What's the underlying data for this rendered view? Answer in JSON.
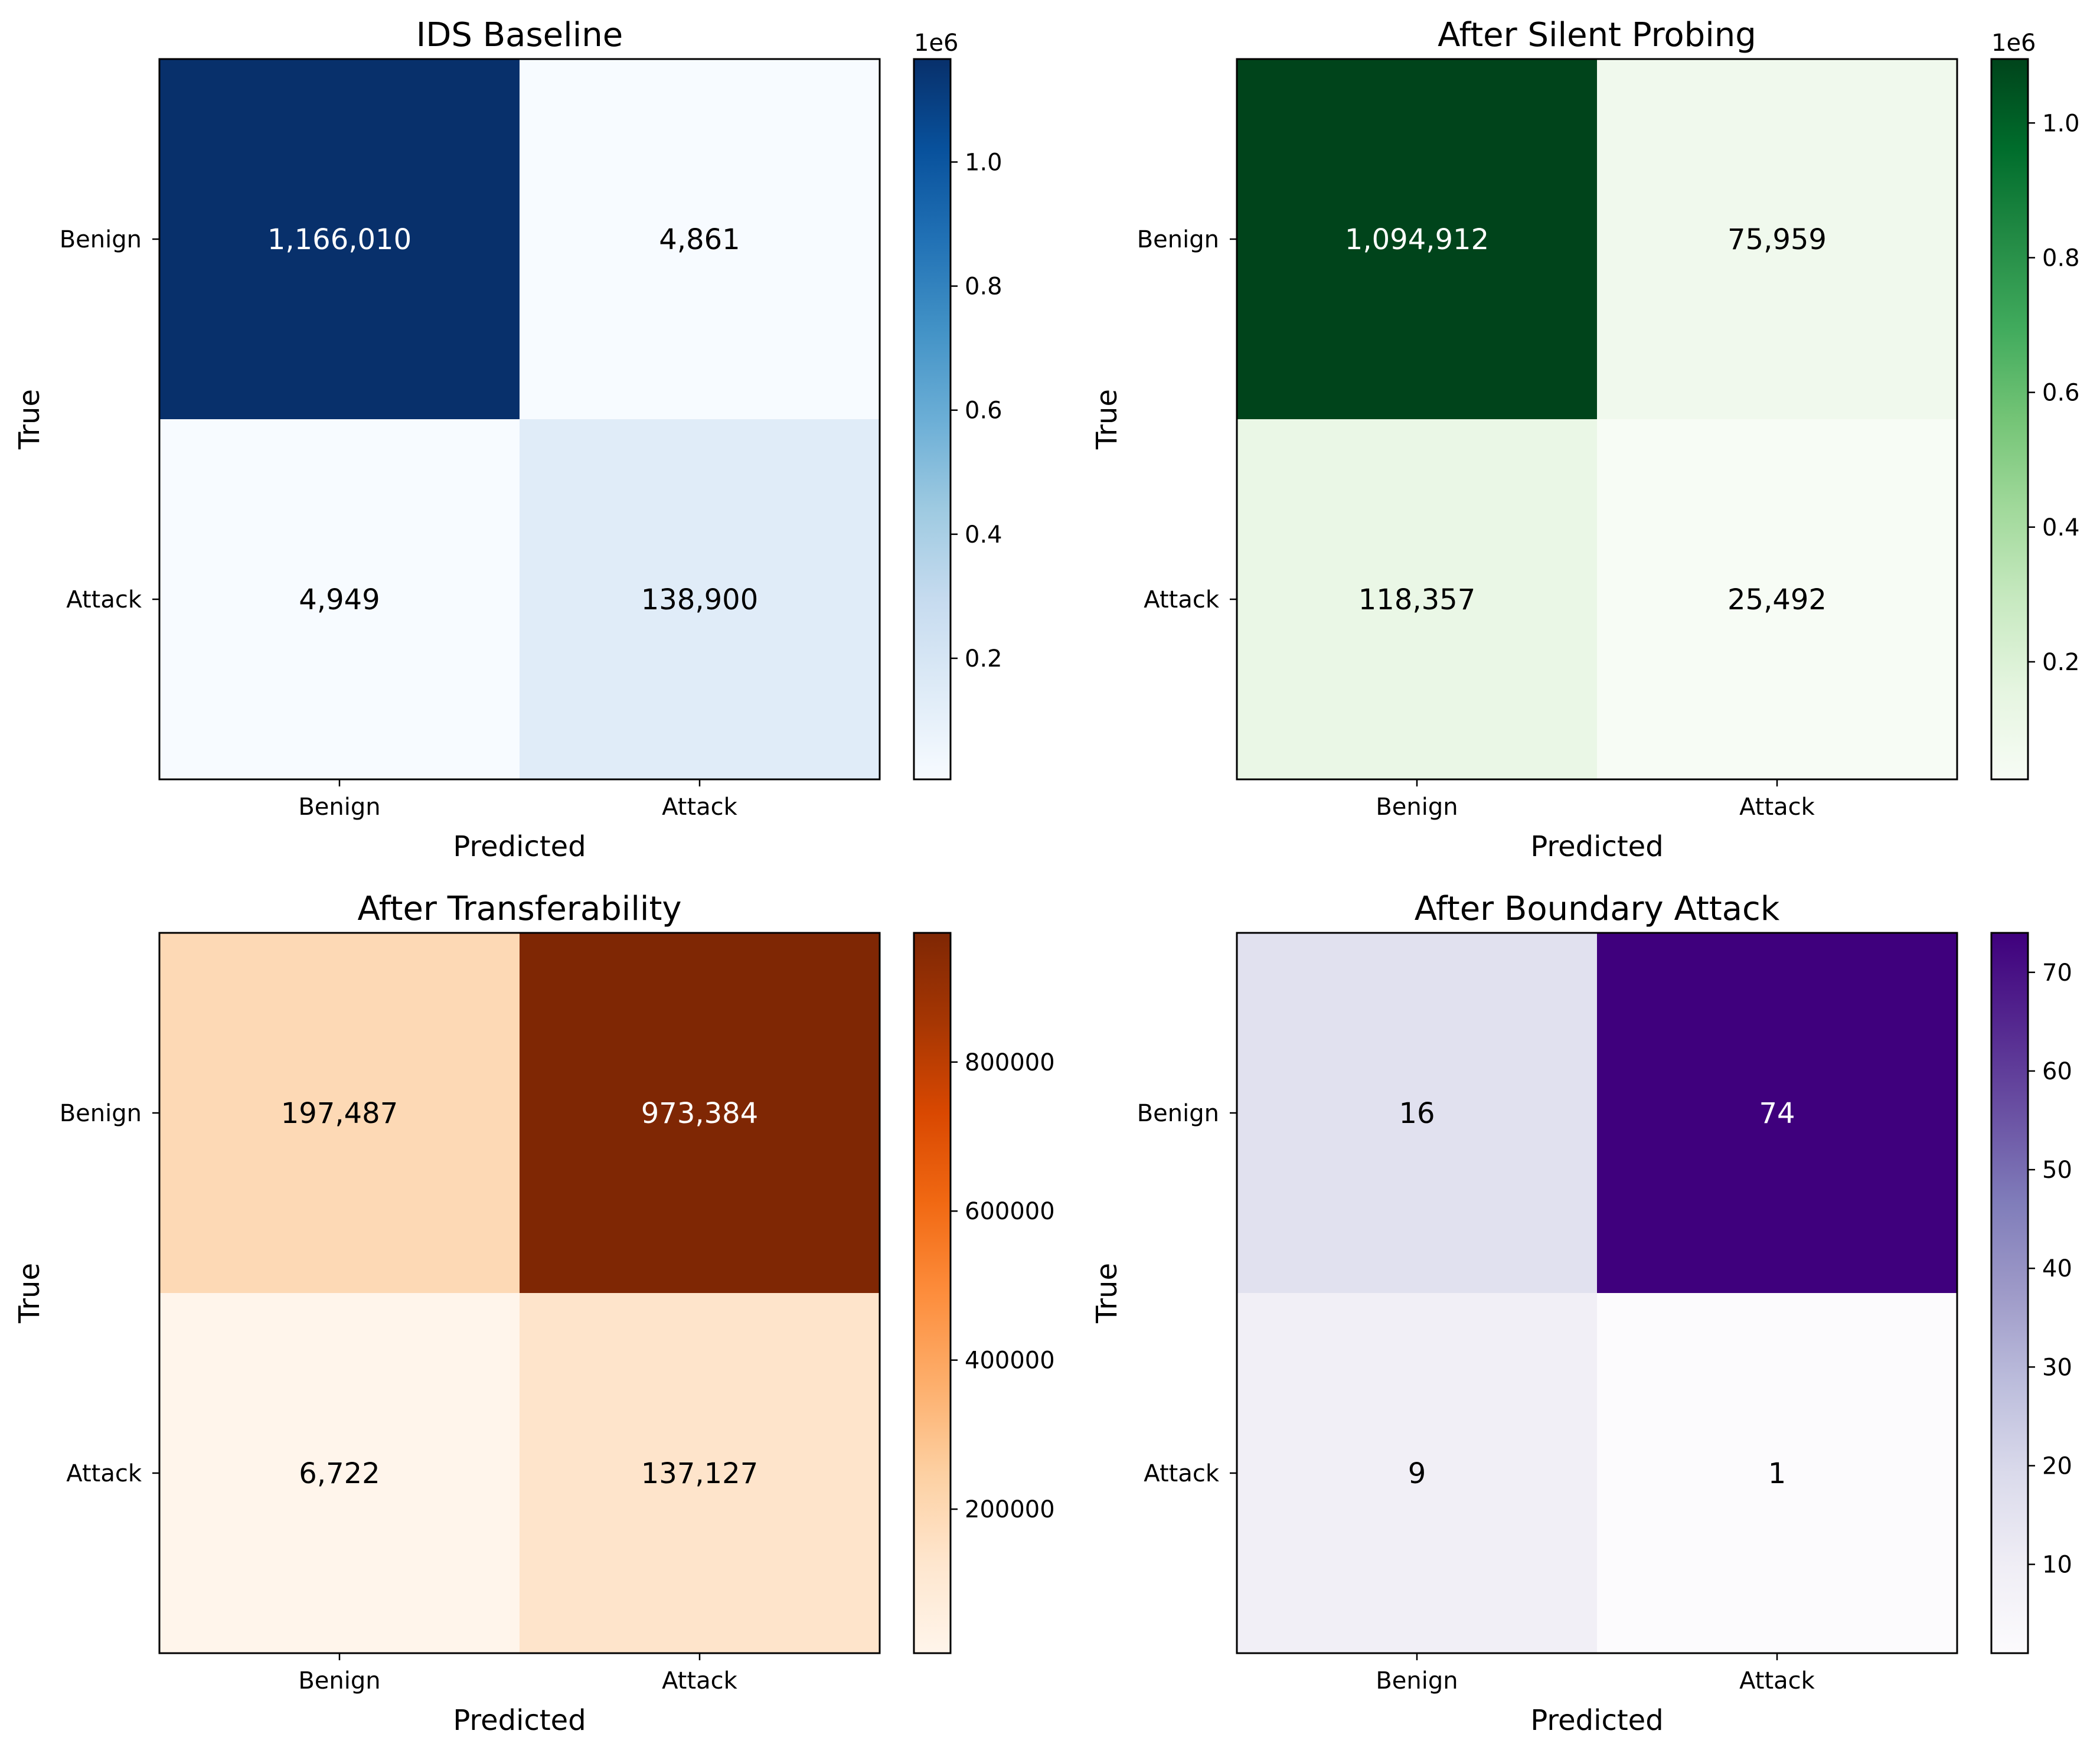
{
  "chart_data": [
    {
      "type": "heatmap",
      "title": "IDS Baseline",
      "xlabel": "Predicted",
      "ylabel": "True",
      "x_categories": [
        "Benign",
        "Attack"
      ],
      "y_categories": [
        "Benign",
        "Attack"
      ],
      "values": [
        [
          1166010,
          4861
        ],
        [
          4949,
          138900
        ]
      ],
      "cell_labels": [
        [
          "1,166,010",
          "4,861"
        ],
        [
          "4,949",
          "138,900"
        ]
      ],
      "colormap": "Blues",
      "colors": [
        "#f7fbff",
        "#deebf7",
        "#c6dbef",
        "#9ecae1",
        "#6baed6",
        "#4292c6",
        "#2171b5",
        "#08519c",
        "#08306b"
      ],
      "colorbar": {
        "min": 4861,
        "max": 1166010,
        "ticks": [
          0.2,
          0.4,
          0.6,
          0.8,
          1.0
        ],
        "tick_labels": [
          "0.2",
          "0.4",
          "0.6",
          "0.8",
          "1.0"
        ],
        "scale_factor": 1000000,
        "offset_label": "1e6"
      }
    },
    {
      "type": "heatmap",
      "title": "After Silent Probing",
      "xlabel": "Predicted",
      "ylabel": "True",
      "x_categories": [
        "Benign",
        "Attack"
      ],
      "y_categories": [
        "Benign",
        "Attack"
      ],
      "values": [
        [
          1094912,
          75959
        ],
        [
          118357,
          25492
        ]
      ],
      "cell_labels": [
        [
          "1,094,912",
          "75,959"
        ],
        [
          "118,357",
          "25,492"
        ]
      ],
      "colormap": "Greens",
      "colors": [
        "#f7fcf5",
        "#e5f5e0",
        "#c7e9c0",
        "#a1d99b",
        "#74c476",
        "#41ab5d",
        "#238b45",
        "#006d2c",
        "#00441b"
      ],
      "colorbar": {
        "min": 25492,
        "max": 1094912,
        "ticks": [
          0.2,
          0.4,
          0.6,
          0.8,
          1.0
        ],
        "tick_labels": [
          "0.2",
          "0.4",
          "0.6",
          "0.8",
          "1.0"
        ],
        "scale_factor": 1000000,
        "offset_label": "1e6"
      }
    },
    {
      "type": "heatmap",
      "title": "After Transferability",
      "xlabel": "Predicted",
      "ylabel": "True",
      "x_categories": [
        "Benign",
        "Attack"
      ],
      "y_categories": [
        "Benign",
        "Attack"
      ],
      "values": [
        [
          197487,
          973384
        ],
        [
          6722,
          137127
        ]
      ],
      "cell_labels": [
        [
          "197,487",
          "973,384"
        ],
        [
          "6,722",
          "137,127"
        ]
      ],
      "colormap": "Oranges",
      "colors": [
        "#fff5eb",
        "#fee6ce",
        "#fdd0a2",
        "#fdae6b",
        "#fd8d3c",
        "#f16913",
        "#d94801",
        "#a63603",
        "#7f2704"
      ],
      "colorbar": {
        "min": 6722,
        "max": 973384,
        "ticks": [
          200000,
          400000,
          600000,
          800000
        ],
        "tick_labels": [
          "200000",
          "400000",
          "600000",
          "800000"
        ],
        "scale_factor": 1,
        "offset_label": ""
      }
    },
    {
      "type": "heatmap",
      "title": "After Boundary Attack",
      "xlabel": "Predicted",
      "ylabel": "True",
      "x_categories": [
        "Benign",
        "Attack"
      ],
      "y_categories": [
        "Benign",
        "Attack"
      ],
      "values": [
        [
          16,
          74
        ],
        [
          9,
          1
        ]
      ],
      "cell_labels": [
        [
          "16",
          "74"
        ],
        [
          "9",
          "1"
        ]
      ],
      "colormap": "Purples",
      "colors": [
        "#fcfbfd",
        "#efedf5",
        "#dadaeb",
        "#bcbddc",
        "#9e9ac8",
        "#807dba",
        "#6a51a3",
        "#54278f",
        "#3f007d"
      ],
      "colorbar": {
        "min": 1,
        "max": 74,
        "ticks": [
          10,
          20,
          30,
          40,
          50,
          60,
          70
        ],
        "tick_labels": [
          "10",
          "20",
          "30",
          "40",
          "50",
          "60",
          "70"
        ],
        "scale_factor": 1,
        "offset_label": ""
      }
    }
  ]
}
